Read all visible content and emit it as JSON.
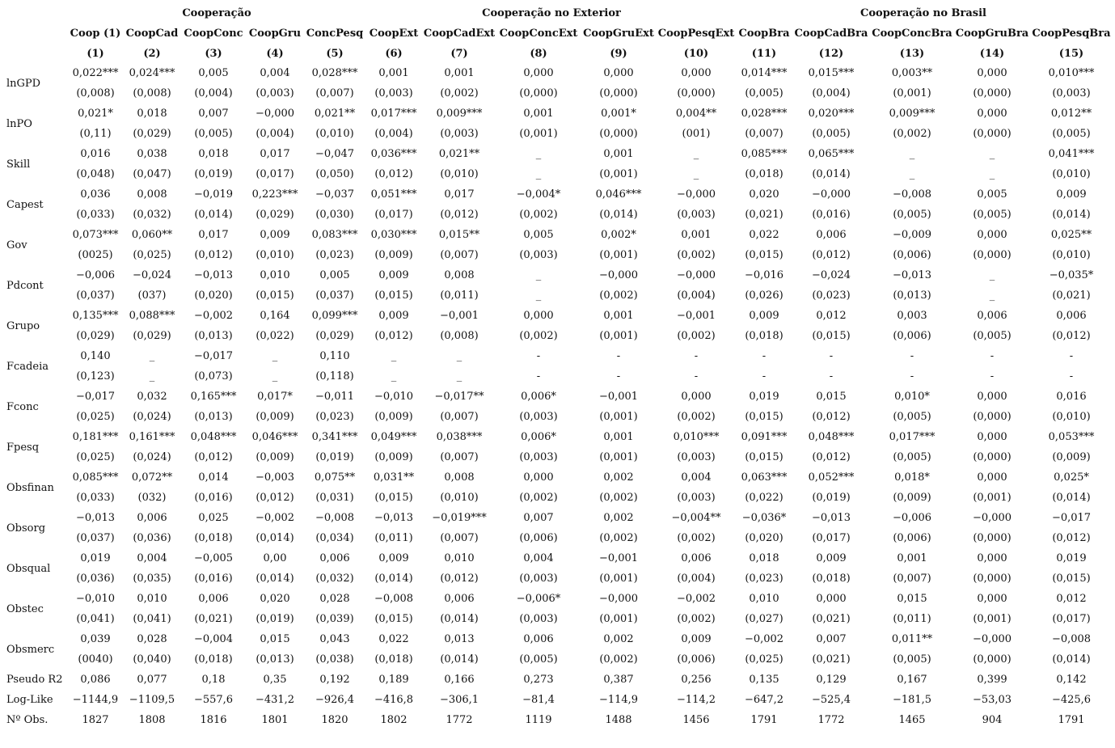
{
  "groups": [
    "Cooperação",
    "Cooperação no Exterior",
    "Cooperação no Brasil"
  ],
  "columns": [
    {
      "name": "Coop (1)",
      "number": "(1)"
    },
    {
      "name": "CoopCad",
      "number": "(2)"
    },
    {
      "name": "CoopConc",
      "number": "(3)"
    },
    {
      "name": "CoopGru",
      "number": "(4)"
    },
    {
      "name": "ConcPesq",
      "number": "(5)"
    },
    {
      "name": "CoopExt",
      "number": "(6)"
    },
    {
      "name": "CoopCadExt",
      "number": "(7)"
    },
    {
      "name": "CoopConcExt",
      "number": "(8)"
    },
    {
      "name": "CoopGruExt",
      "number": "(9)"
    },
    {
      "name": "CoopPesqExt",
      "number": "(10)"
    },
    {
      "name": "CoopBra",
      "number": "(11)"
    },
    {
      "name": "CoopCadBra",
      "number": "(12)"
    },
    {
      "name": "CoopConcBra",
      "number": "(13)"
    },
    {
      "name": "CoopGruBra",
      "number": "(14)"
    },
    {
      "name": "CoopPesqBra",
      "number": "(15)"
    }
  ],
  "rows": [
    {
      "label": "lnGPD",
      "coef": [
        "0,022***",
        "0,024***",
        "0,005",
        "0,004",
        "0,028***",
        "0,001",
        "0,001",
        "0,000",
        "0,000",
        "0,000",
        "0,014***",
        "0,015***",
        "0,003**",
        "0,000",
        "0,010***"
      ],
      "se": [
        "(0,008)",
        "(0,008)",
        "(0,004)",
        "(0,003)",
        "(0,007)",
        "(0,003)",
        "(0,002)",
        "(0,000)",
        "(0,000)",
        "(0,000)",
        "(0,005)",
        "(0,004)",
        "(0,001)",
        "(0,000)",
        "(0,003)"
      ]
    },
    {
      "label": "lnPO",
      "coef": [
        "0,021*",
        "0,018",
        "0,007",
        "−0,000",
        "0,021**",
        "0,017***",
        "0,009***",
        "0,001",
        "0,001*",
        "0,004**",
        "0,028***",
        "0,020***",
        "0,009***",
        "0,000",
        "0,012**"
      ],
      "se": [
        "(0,11)",
        "(0,029)",
        "(0,005)",
        "(0,004)",
        "(0,010)",
        "(0,004)",
        "(0,003)",
        "(0,001)",
        "(0,000)",
        "(001)",
        "(0,007)",
        "(0,005)",
        "(0,002)",
        "(0,000)",
        "(0,005)"
      ]
    },
    {
      "label": "Skill",
      "coef": [
        "0,016",
        "0,038",
        "0,018",
        "0,017",
        "−0,047",
        "0,036***",
        "0,021**",
        "_",
        "0,001",
        "_",
        "0,085***",
        "0,065***",
        "_",
        "_",
        "0,041***"
      ],
      "se": [
        "(0,048)",
        "(0,047)",
        "(0,019)",
        "(0,017)",
        "(0,050)",
        "(0,012)",
        "(0,010)",
        "_",
        "(0,001)",
        "_",
        "(0,018)",
        "(0,014)",
        "_",
        "_",
        "(0,010)"
      ]
    },
    {
      "label": "Capest",
      "coef": [
        "0,036",
        "0,008",
        "−0,019",
        "0,223***",
        "−0,037",
        "0,051***",
        "0,017",
        "−0,004*",
        "0,046***",
        "−0,000",
        "0,020",
        "−0,000",
        "−0,008",
        "0,005",
        "0,009"
      ],
      "se": [
        "(0,033)",
        "(0,032)",
        "(0,014)",
        "(0,029)",
        "(0,030)",
        "(0,017)",
        "(0,012)",
        "(0,002)",
        "(0,014)",
        "(0,003)",
        "(0,021)",
        "(0,016)",
        "(0,005)",
        "(0,005)",
        "(0,014)"
      ]
    },
    {
      "label": "Gov",
      "coef": [
        "0,073***",
        "0,060**",
        "0,017",
        "0,009",
        "0,083***",
        "0,030***",
        "0,015**",
        "0,005",
        "0,002*",
        "0,001",
        "0,022",
        "0,006",
        "−0,009",
        "0,000",
        "0,025**"
      ],
      "se": [
        "(0025)",
        "(0,025)",
        "(0,012)",
        "(0,010)",
        "(0,023)",
        "(0,009)",
        "(0,007)",
        "(0,003)",
        "(0,001)",
        "(0,002)",
        "(0,015)",
        "(0,012)",
        "(0,006)",
        "(0,000)",
        "(0,010)"
      ]
    },
    {
      "label": "Pdcont",
      "coef": [
        "−0,006",
        "−0,024",
        "−0,013",
        "0,010",
        "0,005",
        "0,009",
        "0,008",
        "_",
        "−0,000",
        "−0,000",
        "−0,016",
        "−0,024",
        "−0,013",
        "_",
        "−0,035*"
      ],
      "se": [
        "(0,037)",
        "(037)",
        "(0,020)",
        "(0,015)",
        "(0,037)",
        "(0,015)",
        "(0,011)",
        "_",
        "(0,002)",
        "(0,004)",
        "(0,026)",
        "(0,023)",
        "(0,013)",
        "_",
        "(0,021)"
      ]
    },
    {
      "label": "Grupo",
      "coef": [
        "0,135***",
        "0,088***",
        "−0,002",
        "0,164",
        "0,099***",
        "0,009",
        "−0,001",
        "0,000",
        "0,001",
        "−0,001",
        "0,009",
        "0,012",
        "0,003",
        "0,006",
        "0,006"
      ],
      "se": [
        "(0,029)",
        "(0,029)",
        "(0,013)",
        "(0,022)",
        "(0,029)",
        "(0,012)",
        "(0,008)",
        "(0,002)",
        "(0,001)",
        "(0,002)",
        "(0,018)",
        "(0,015)",
        "(0,006)",
        "(0,005)",
        "(0,012)"
      ]
    },
    {
      "label": "Fcadeia",
      "coef": [
        "0,140",
        "_",
        "−0,017",
        "_",
        "0,110",
        "_",
        "_",
        "-",
        "-",
        "-",
        "-",
        "-",
        "-",
        "-",
        "-"
      ],
      "se": [
        "(0,123)",
        "_",
        "(0,073)",
        "_",
        "(0,118)",
        "_",
        "_",
        "-",
        "-",
        "-",
        "-",
        "-",
        "-",
        "-",
        "-"
      ]
    },
    {
      "label": "Fconc",
      "coef": [
        "−0,017",
        "0,032",
        "0,165***",
        "0,017*",
        "−0,011",
        "−0,010",
        "−0,017**",
        "0,006*",
        "−0,001",
        "0,000",
        "0,019",
        "0,015",
        "0,010*",
        "0,000",
        "0,016"
      ],
      "se": [
        "(0,025)",
        "(0,024)",
        "(0,013)",
        "(0,009)",
        "(0,023)",
        "(0,009)",
        "(0,007)",
        "(0,003)",
        "(0,001)",
        "(0,002)",
        "(0,015)",
        "(0,012)",
        "(0,005)",
        "(0,000)",
        "(0,010)"
      ]
    },
    {
      "label": "Fpesq",
      "coef": [
        "0,181***",
        "0,161***",
        "0,048***",
        "0,046***",
        "0,341***",
        "0,049***",
        "0,038***",
        "0,006*",
        "0,001",
        "0,010***",
        "0,091***",
        "0,048***",
        "0,017***",
        "0,000",
        "0,053***"
      ],
      "se": [
        "(0,025)",
        "(0,024)",
        "(0,012)",
        "(0,009)",
        "(0,019)",
        "(0,009)",
        "(0,007)",
        "(0,003)",
        "(0,001)",
        "(0,003)",
        "(0,015)",
        "(0,012)",
        "(0,005)",
        "(0,000)",
        "(0,009)"
      ]
    },
    {
      "label": "Obsfinan",
      "coef": [
        "0,085***",
        "0,072**",
        "0,014",
        "−0,003",
        "0,075**",
        "0,031**",
        "0,008",
        "0,000",
        "0,002",
        "0,004",
        "0,063***",
        "0,052***",
        "0,018*",
        "0,000",
        "0,025*"
      ],
      "se": [
        "(0,033)",
        "(032)",
        "(0,016)",
        "(0,012)",
        "(0,031)",
        "(0,015)",
        "(0,010)",
        "(0,002)",
        "(0,002)",
        "(0,003)",
        "(0,022)",
        "(0,019)",
        "(0,009)",
        "(0,001)",
        "(0,014)"
      ]
    },
    {
      "label": "Obsorg",
      "coef": [
        "−0,013",
        "0,006",
        "0,025",
        "−0,002",
        "−0,008",
        "−0,013",
        "−0,019***",
        "0,007",
        "0,002",
        "−0,004**",
        "−0,036*",
        "−0,013",
        "−0,006",
        "−0,000",
        "−0,017"
      ],
      "se": [
        "(0,037)",
        "(0,036)",
        "(0,018)",
        "(0,014)",
        "(0,034)",
        "(0,011)",
        "(0,007)",
        "(0,006)",
        "(0,002)",
        "(0,002)",
        "(0,020)",
        "(0,017)",
        "(0,006)",
        "(0,000)",
        "(0,012)"
      ]
    },
    {
      "label": "Obsqual",
      "coef": [
        "0,019",
        "0,004",
        "−0,005",
        "0,00",
        "0,006",
        "0,009",
        "0,010",
        "0,004",
        "−0,001",
        "0,006",
        "0,018",
        "0,009",
        "0,001",
        "0,000",
        "0,019"
      ],
      "se": [
        "(0,036)",
        "(0,035)",
        "(0,016)",
        "(0,014)",
        "(0,032)",
        "(0,014)",
        "(0,012)",
        "(0,003)",
        "(0,001)",
        "(0,004)",
        "(0,023)",
        "(0,018)",
        "(0,007)",
        "(0,000)",
        "(0,015)"
      ]
    },
    {
      "label": "Obstec",
      "coef": [
        "−0,010",
        "0,010",
        "0,006",
        "0,020",
        "0,028",
        "−0,008",
        "0,006",
        "−0,006*",
        "−0,000",
        "−0,002",
        "0,010",
        "0,000",
        "0,015",
        "0,000",
        "0,012"
      ],
      "se": [
        "(0,041)",
        "(0,041)",
        "(0,021)",
        "(0,019)",
        "(0,039)",
        "(0,015)",
        "(0,014)",
        "(0,003)",
        "(0,001)",
        "(0,002)",
        "(0,027)",
        "(0,021)",
        "(0,011)",
        "(0,001)",
        "(0,017)"
      ]
    },
    {
      "label": "Obsmerc",
      "coef": [
        "0,039",
        "0,028",
        "−0,004",
        "0,015",
        "0,043",
        "0,022",
        "0,013",
        "0,006",
        "0,002",
        "0,009",
        "−0,002",
        "0,007",
        "0,011**",
        "−0,000",
        "−0,008"
      ],
      "se": [
        "(0040)",
        "(0,040)",
        "(0,018)",
        "(0,013)",
        "(0,038)",
        "(0,018)",
        "(0,014)",
        "(0,005)",
        "(0,002)",
        "(0,006)",
        "(0,025)",
        "(0,021)",
        "(0,005)",
        "(0,000)",
        "(0,014)"
      ]
    }
  ],
  "stats": [
    {
      "label": "Pseudo R2",
      "values": [
        "0,086",
        "0,077",
        "0,18",
        "0,35",
        "0,192",
        "0,189",
        "0,166",
        "0,273",
        "0,387",
        "0,256",
        "0,135",
        "0,129",
        "0,167",
        "0,399",
        "0,142"
      ]
    },
    {
      "label": "Log-Like",
      "values": [
        "−1144,9",
        "−1109,5",
        "−557,6",
        "−431,2",
        "−926,4",
        "−416,8",
        "−306,1",
        "−81,4",
        "−114,9",
        "−114,2",
        "−647,2",
        "−525,4",
        "−181,5",
        "−53,03",
        "−425,6"
      ]
    },
    {
      "label": "Nº Obs.",
      "values": [
        "1827",
        "1808",
        "1816",
        "1801",
        "1820",
        "1802",
        "1772",
        "1119",
        "1488",
        "1456",
        "1791",
        "1772",
        "1465",
        "904",
        "1791"
      ]
    }
  ]
}
